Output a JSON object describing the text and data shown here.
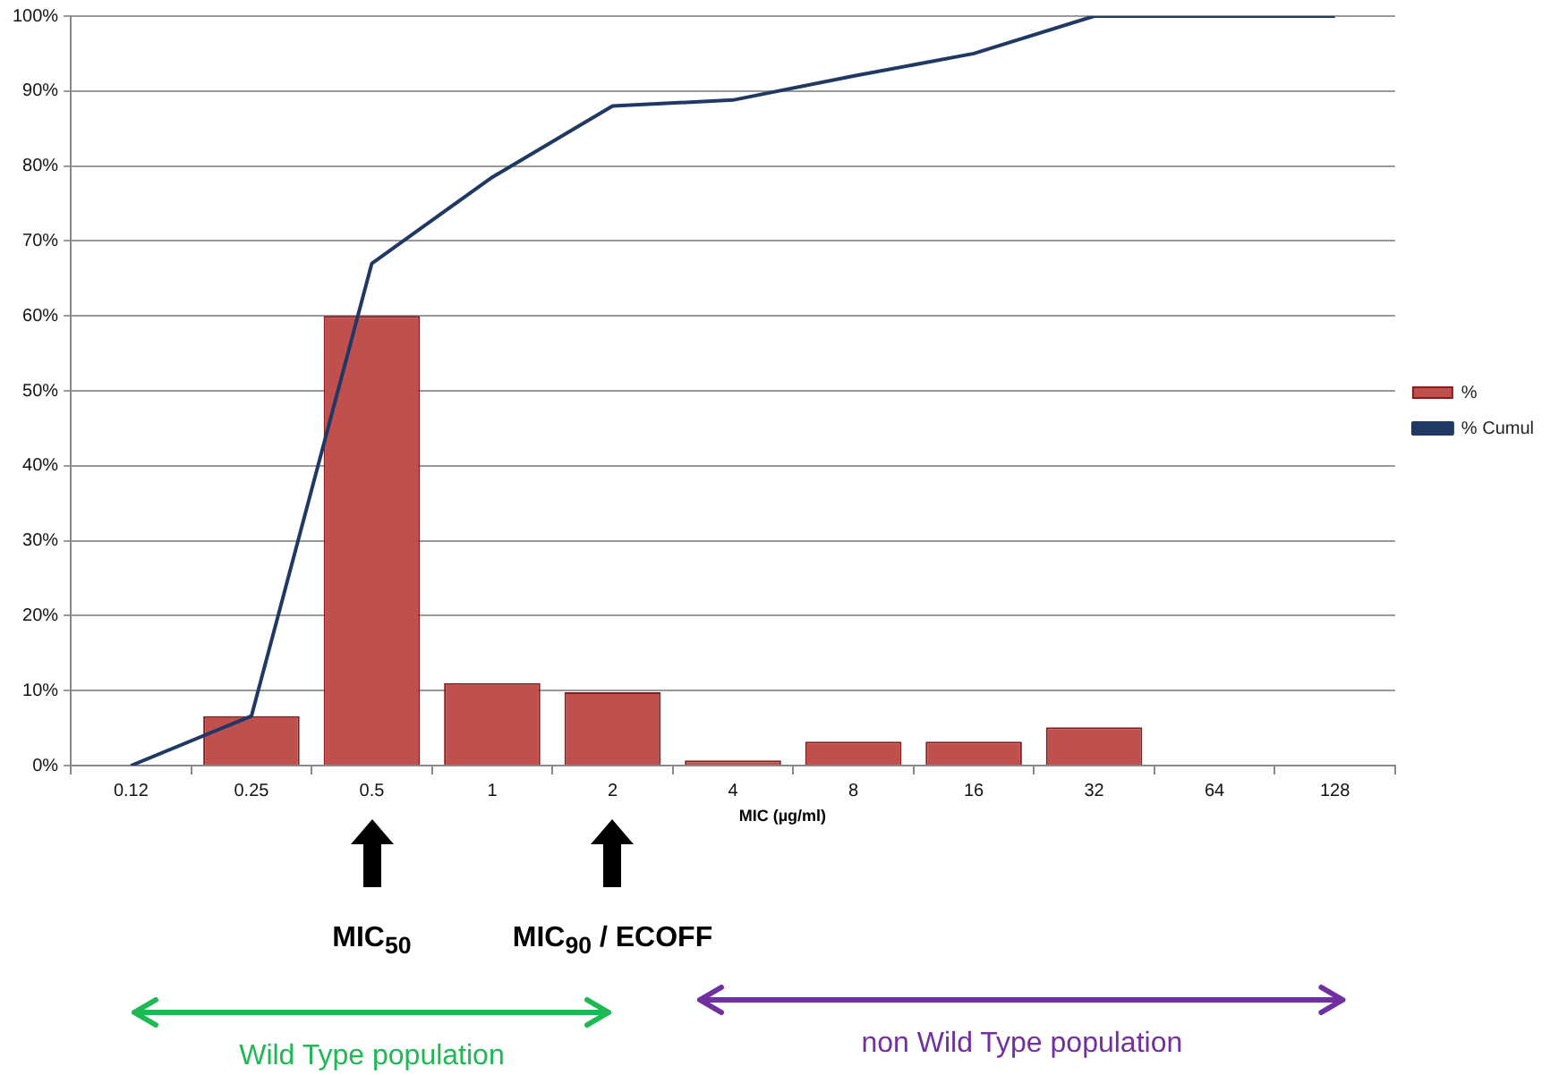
{
  "chart_data": {
    "type": "bar",
    "categories": [
      "0.12",
      "0.25",
      "0.5",
      "1",
      "2",
      "4",
      "8",
      "16",
      "32",
      "64",
      "128"
    ],
    "series": [
      {
        "name": "%",
        "color": "#c0504d",
        "values": [
          0,
          6.6,
          60,
          11,
          9.8,
          0.7,
          3.2,
          3.2,
          5.1,
          0,
          0
        ]
      },
      {
        "name": "% Cumul",
        "type": "line",
        "color": "#1f3864",
        "values": [
          0,
          6.6,
          67,
          78.5,
          88,
          88.8,
          92,
          95,
          100,
          100,
          100
        ]
      }
    ],
    "xlabel": "MIC (µg/ml)",
    "ylim": [
      0,
      100
    ],
    "yticks": [
      {
        "value": 0,
        "label": "0%"
      },
      {
        "value": 10,
        "label": "10%"
      },
      {
        "value": 20,
        "label": "20%"
      },
      {
        "value": 30,
        "label": "30%"
      },
      {
        "value": 40,
        "label": "40%"
      },
      {
        "value": 50,
        "label": "50%"
      },
      {
        "value": 60,
        "label": "60%"
      },
      {
        "value": 70,
        "label": "70%"
      },
      {
        "value": 80,
        "label": "80%"
      },
      {
        "value": 90,
        "label": "90%"
      },
      {
        "value": 100,
        "label": "100%"
      }
    ],
    "grid": "y",
    "legend": "right",
    "marker": "none",
    "annotations": [
      "MIC$_{50}$",
      "MIC$_{90}$ / ECOFF",
      "Wild Type population",
      "non Wild Type population"
    ]
  }
}
